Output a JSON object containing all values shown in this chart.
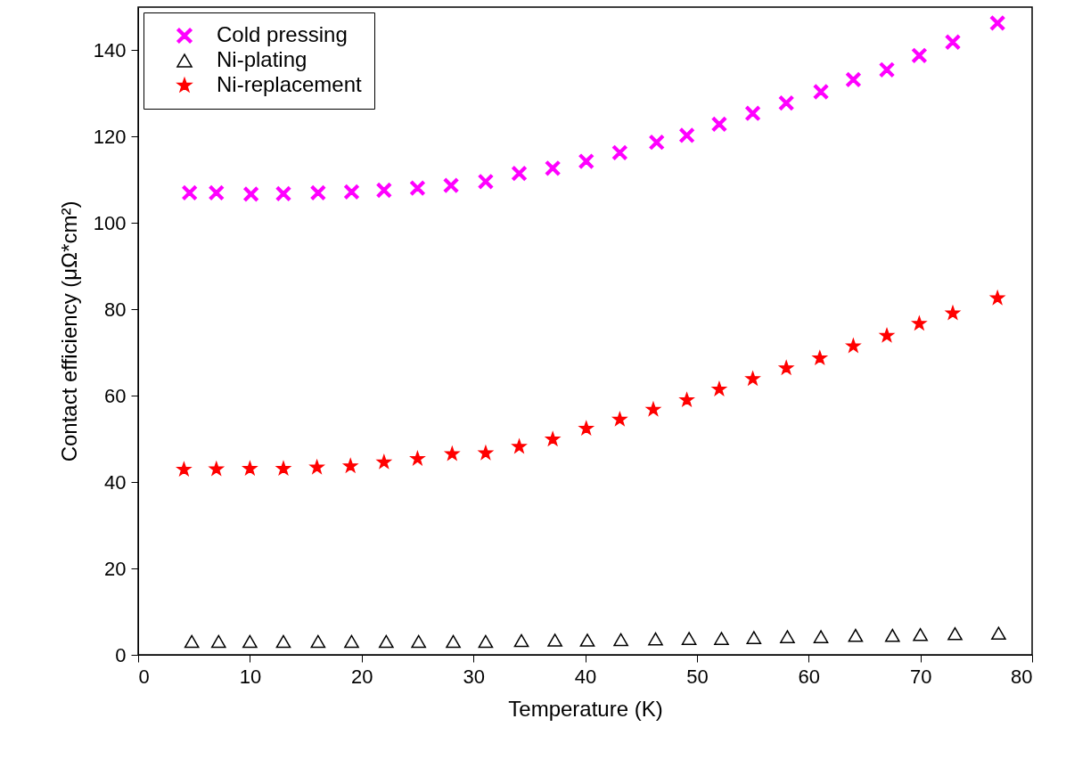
{
  "chart_data": {
    "type": "scatter",
    "xlabel": "Temperature (K)",
    "ylabel": "Contact efficiency (μΩ*cm²)",
    "xlim": [
      0,
      80
    ],
    "xticks": [
      0,
      10,
      20,
      30,
      40,
      50,
      60,
      70,
      80
    ],
    "ylim": [
      0,
      150
    ],
    "yticks": [
      0,
      20,
      40,
      60,
      80,
      100,
      120,
      140
    ],
    "grid": false,
    "legend": "top left",
    "series": [
      {
        "name": "Cold pressing",
        "color": "#ff00ff",
        "marker": "cross",
        "x": [
          4.6,
          7.0,
          10.1,
          13.0,
          16.1,
          19.1,
          22.0,
          25.0,
          28.0,
          31.1,
          34.1,
          37.1,
          40.1,
          43.1,
          46.4,
          49.1,
          52.0,
          55.0,
          58.0,
          61.1,
          64.0,
          67.0,
          69.9,
          72.9,
          76.9
        ],
        "values": [
          107.0,
          107.0,
          106.7,
          106.8,
          107.0,
          107.2,
          107.6,
          108.1,
          108.7,
          109.6,
          111.5,
          112.7,
          114.3,
          116.3,
          118.7,
          120.3,
          122.9,
          125.4,
          127.8,
          130.4,
          133.2,
          135.5,
          138.8,
          141.9,
          146.3
        ]
      },
      {
        "name": "Ni-plating",
        "color": "#000000",
        "marker": "triangle",
        "x": [
          4.8,
          7.2,
          10.0,
          13.0,
          16.1,
          19.1,
          22.2,
          25.1,
          28.2,
          31.1,
          34.3,
          37.3,
          40.2,
          43.2,
          46.3,
          49.3,
          52.2,
          55.1,
          58.1,
          61.1,
          64.2,
          67.5,
          70.0,
          73.1,
          77.0
        ],
        "values": [
          3.1,
          3.1,
          3.1,
          3.1,
          3.1,
          3.1,
          3.1,
          3.1,
          3.1,
          3.1,
          3.3,
          3.4,
          3.4,
          3.5,
          3.7,
          3.8,
          3.8,
          4.0,
          4.2,
          4.2,
          4.5,
          4.5,
          4.7,
          4.9,
          5.0
        ]
      },
      {
        "name": "Ni-replacement",
        "color": "#ff0000",
        "marker": "star",
        "x": [
          4.1,
          7.0,
          10.0,
          13.0,
          16.0,
          19.0,
          22.0,
          25.0,
          28.1,
          31.1,
          34.1,
          37.1,
          40.1,
          43.1,
          46.1,
          49.1,
          52.0,
          55.0,
          58.0,
          61.0,
          64.0,
          67.0,
          69.9,
          72.9,
          76.9
        ],
        "values": [
          42.9,
          43.0,
          43.1,
          43.1,
          43.4,
          43.7,
          44.6,
          45.4,
          46.5,
          46.7,
          48.2,
          49.9,
          52.4,
          54.5,
          56.8,
          59.0,
          61.5,
          63.9,
          66.4,
          68.7,
          71.5,
          73.9,
          76.7,
          79.1,
          82.6
        ]
      }
    ]
  }
}
